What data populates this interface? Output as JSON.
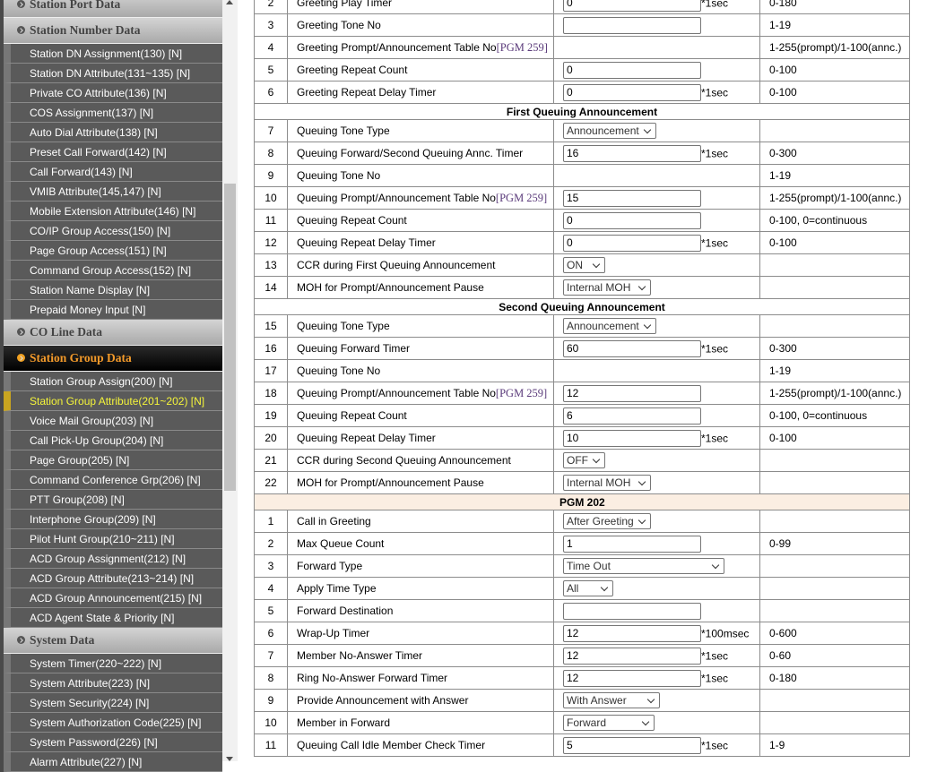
{
  "sidebar": {
    "sections": [
      {
        "title": "Station Port Data",
        "items": []
      },
      {
        "title": "Station Number Data",
        "items": [
          "Station DN Assignment(130) [N]",
          "Station DN Attribute(131~135) [N]",
          "Private CO Attribute(136) [N]",
          "COS Assignment(137) [N]",
          "Auto Dial Attribute(138) [N]",
          "Preset Call Forward(142) [N]",
          "Call Forward(143) [N]",
          "VMIB Attribute(145,147) [N]",
          "Mobile Extension Attribute(146) [N]",
          "CO/IP Group Access(150) [N]",
          "Page Group Access(151) [N]",
          "Command Group Access(152) [N]",
          "Station Name Display [N]",
          "Prepaid Money Input [N]"
        ]
      },
      {
        "title": "CO Line Data",
        "items": []
      },
      {
        "title": "Station Group Data",
        "active": true,
        "items": [
          "Station Group Assign(200) [N]",
          "Station Group Attribute(201~202) [N]",
          "Voice Mail Group(203) [N]",
          "Call Pick-Up Group(204) [N]",
          "Page Group(205) [N]",
          "Command Conference Grp(206) [N]",
          "PTT Group(208) [N]",
          "Interphone Group(209) [N]",
          "Pilot Hunt Group(210~211) [N]",
          "ACD Group Assignment(212) [N]",
          "ACD Group Attribute(213~214) [N]",
          "ACD Group Announcement(215) [N]",
          "ACD Agent State & Priority [N]"
        ]
      },
      {
        "title": "System Data",
        "items": [
          "System Timer(220~222) [N]",
          "System Attribute(223) [N]",
          "System Security(224) [N]",
          "System Authorization Code(225) [N]",
          "System Password(226) [N]",
          "Alarm Attribute(227) [N]"
        ]
      }
    ],
    "selected_item": "Station Group Attribute(201~202) [N]"
  },
  "table": {
    "rows": [
      {
        "no": "2",
        "label": "Greeting Play Timer",
        "type": "input",
        "value": "0",
        "suffix": "*1sec",
        "range": "0-180"
      },
      {
        "no": "3",
        "label": "Greeting Tone No",
        "type": "input",
        "value": "",
        "range": "1-19"
      },
      {
        "no": "4",
        "label": "Greeting Prompt/Announcement Table No",
        "link": "[PGM 259]",
        "type": "none",
        "range": "1-255(prompt)/1-100(annc.)"
      },
      {
        "no": "5",
        "label": "Greeting Repeat Count",
        "type": "input",
        "value": "0",
        "range": "0-100"
      },
      {
        "no": "6",
        "label": "Greeting Repeat Delay Timer",
        "type": "input",
        "value": "0",
        "suffix": "*1sec",
        "range": "0-100"
      },
      {
        "section": "First Queuing Announcement"
      },
      {
        "no": "7",
        "label": "Queuing Tone Type",
        "type": "select",
        "value": "Announcement",
        "range": ""
      },
      {
        "no": "8",
        "label": "Queuing Forward/Second Queuing Annc. Timer",
        "type": "input",
        "value": "16",
        "suffix": "*1sec",
        "range": "0-300"
      },
      {
        "no": "9",
        "label": "Queuing Tone No",
        "type": "none",
        "range": "1-19"
      },
      {
        "no": "10",
        "label": "Queuing Prompt/Announcement Table No",
        "link": "[PGM 259]",
        "type": "input",
        "value": "15",
        "range": "1-255(prompt)/1-100(annc.)"
      },
      {
        "no": "11",
        "label": "Queuing Repeat Count",
        "type": "input",
        "value": "0",
        "range": "0-100, 0=continuous"
      },
      {
        "no": "12",
        "label": "Queuing Repeat Delay Timer",
        "type": "input",
        "value": "0",
        "suffix": "*1sec",
        "range": "0-100"
      },
      {
        "no": "13",
        "label": "CCR during First Queuing Announcement",
        "type": "select",
        "value": "ON",
        "range": ""
      },
      {
        "no": "14",
        "label": "MOH for Prompt/Announcement Pause",
        "type": "select",
        "value": "Internal MOH",
        "range": ""
      },
      {
        "section": "Second Queuing Announcement"
      },
      {
        "no": "15",
        "label": "Queuing Tone Type",
        "type": "select",
        "value": "Announcement",
        "range": ""
      },
      {
        "no": "16",
        "label": "Queuing Forward Timer",
        "type": "input",
        "value": "60",
        "suffix": "*1sec",
        "range": "0-300"
      },
      {
        "no": "17",
        "label": "Queuing Tone No",
        "type": "none",
        "range": "1-19"
      },
      {
        "no": "18",
        "label": "Queuing Prompt/Announcement Table No",
        "link": "[PGM 259]",
        "type": "input",
        "value": "12",
        "range": "1-255(prompt)/1-100(annc.)"
      },
      {
        "no": "19",
        "label": "Queuing Repeat Count",
        "type": "input",
        "value": "6",
        "range": "0-100, 0=continuous"
      },
      {
        "no": "20",
        "label": "Queuing Repeat Delay Timer",
        "type": "input",
        "value": "10",
        "suffix": "*1sec",
        "range": "0-100"
      },
      {
        "no": "21",
        "label": "CCR during Second Queuing Announcement",
        "type": "select",
        "value": "OFF",
        "range": ""
      },
      {
        "no": "22",
        "label": "MOH for Prompt/Announcement Pause",
        "type": "select",
        "value": "Internal MOH",
        "range": ""
      },
      {
        "pgm": "PGM 202"
      },
      {
        "no": "1",
        "label": "Call in Greeting",
        "type": "select",
        "value": "After Greeting",
        "range": ""
      },
      {
        "no": "2",
        "label": "Max Queue Count",
        "type": "input",
        "value": "1",
        "range": "0-99"
      },
      {
        "no": "3",
        "label": "Forward Type",
        "type": "select",
        "value": "Time Out",
        "range": ""
      },
      {
        "no": "4",
        "label": "Apply Time Type",
        "type": "select",
        "value": "All",
        "range": ""
      },
      {
        "no": "5",
        "label": "Forward Destination",
        "type": "input",
        "value": "",
        "range": ""
      },
      {
        "no": "6",
        "label": "Wrap-Up Timer",
        "type": "input",
        "value": "12",
        "suffix": "*100msec",
        "range": "0-600"
      },
      {
        "no": "7",
        "label": "Member No-Answer Timer",
        "type": "input",
        "value": "12",
        "suffix": "*1sec",
        "range": "0-60"
      },
      {
        "no": "8",
        "label": "Ring No-Answer Forward Timer",
        "type": "input",
        "value": "12",
        "suffix": "*1sec",
        "range": "0-180"
      },
      {
        "no": "9",
        "label": "Provide Announcement with Answer",
        "type": "select",
        "value": "With Answer",
        "range": ""
      },
      {
        "no": "10",
        "label": "Member in Forward",
        "type": "select",
        "value": "Forward",
        "range": ""
      },
      {
        "no": "11",
        "label": "Queuing Call Idle Member Check Timer",
        "type": "input",
        "value": "5",
        "suffix": "*1sec",
        "range": "1-9"
      }
    ]
  }
}
